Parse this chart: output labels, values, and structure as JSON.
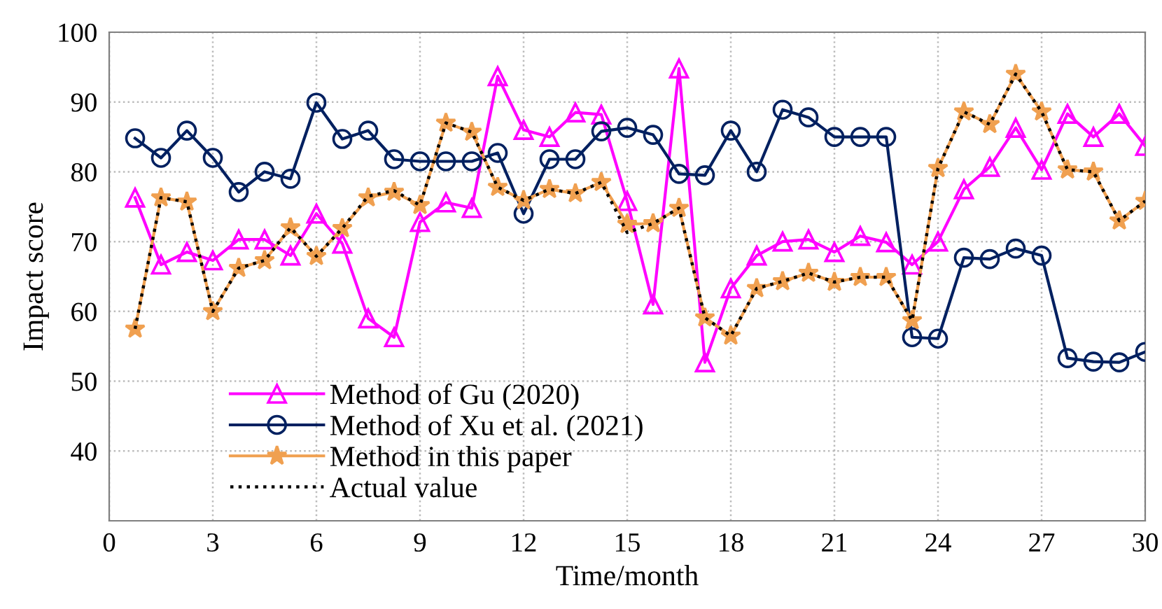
{
  "chart_data": {
    "type": "line",
    "xlabel": "Time/month",
    "ylabel": "Impact score",
    "x": [
      0.75,
      1.5,
      2.25,
      3,
      3.75,
      4.5,
      5.25,
      6,
      6.75,
      7.5,
      8.25,
      9,
      9.75,
      10.5,
      11.25,
      12,
      12.75,
      13.5,
      14.25,
      15,
      15.75,
      16.5,
      17.25,
      18,
      18.75,
      19.5,
      20.25,
      21,
      21.75,
      22.5,
      23.25,
      24,
      24.75,
      25.5,
      26.25,
      27,
      27.75,
      28.5,
      29.25,
      30
    ],
    "series": [
      {
        "name": "Method of Gu (2020)",
        "color": "#ff00ff",
        "marker": "triangle",
        "line_style": "solid",
        "values": [
          76.3,
          66.7,
          68.5,
          67.3,
          70.3,
          70.3,
          68,
          74,
          69.7,
          59,
          56.3,
          72.8,
          75.6,
          74.8,
          93.7,
          86,
          85,
          88.5,
          88.2,
          75.8,
          61,
          94.8,
          52.7,
          63.3,
          68,
          70,
          70.3,
          68.5,
          70.8,
          69.9,
          66.7,
          70,
          77.5,
          80.7,
          86.3,
          80.3,
          88.3,
          85,
          88.3,
          83.7
        ]
      },
      {
        "name": "Method of Xu et al. (2021)",
        "color": "#002060",
        "marker": "circle",
        "line_style": "solid",
        "values": [
          84.8,
          82,
          85.9,
          82,
          77.1,
          80,
          79,
          89.9,
          84.7,
          85.9,
          81.8,
          81.5,
          81.5,
          81.5,
          82.7,
          74,
          81.8,
          81.8,
          85.8,
          86.3,
          85.3,
          79.7,
          79.5,
          85.9,
          80,
          88.9,
          87.8,
          85,
          85,
          85,
          56.3,
          56.1,
          67.7,
          67.5,
          69,
          68,
          53.3,
          52.8,
          52.7,
          54.2
        ]
      },
      {
        "name": "Method in this paper",
        "color": "#f0a050",
        "marker": "star",
        "line_style": "solid",
        "values": [
          57.5,
          76.3,
          75.7,
          60,
          66.2,
          67.3,
          72,
          67.9,
          71.9,
          76.3,
          77.1,
          75.2,
          87,
          85.7,
          77.8,
          75.9,
          77.5,
          76.9,
          78.5,
          72.5,
          72.6,
          74.8,
          59.1,
          56.5,
          63.3,
          64.3,
          65.5,
          64.2,
          64.9,
          64.9,
          58.7,
          80.5,
          88.6,
          86.8,
          94,
          88.6,
          80.3,
          80,
          73,
          75.8
        ]
      },
      {
        "name": "Actual value",
        "color": "#000000",
        "marker": "none",
        "line_style": "dotted",
        "values": [
          57.5,
          76.3,
          75.7,
          60,
          66.2,
          67.3,
          72,
          67.9,
          71.9,
          76.5,
          77.3,
          75.2,
          87,
          85.7,
          77.8,
          75.9,
          77.5,
          76.9,
          78.5,
          71.3,
          72.6,
          74.8,
          59.1,
          56.5,
          63.3,
          64.3,
          65.5,
          64.2,
          64.9,
          64.9,
          58.7,
          80.5,
          88.6,
          86.8,
          94,
          88.6,
          80.3,
          80,
          73,
          75.8
        ]
      }
    ],
    "xlim": [
      0,
      30
    ],
    "xticks": [
      0,
      3,
      6,
      9,
      12,
      15,
      18,
      21,
      24,
      27,
      30
    ],
    "ylim": [
      30,
      100
    ],
    "yticks": [
      40,
      50,
      60,
      70,
      80,
      90,
      100
    ],
    "grid": true,
    "legend": "bottom left"
  }
}
